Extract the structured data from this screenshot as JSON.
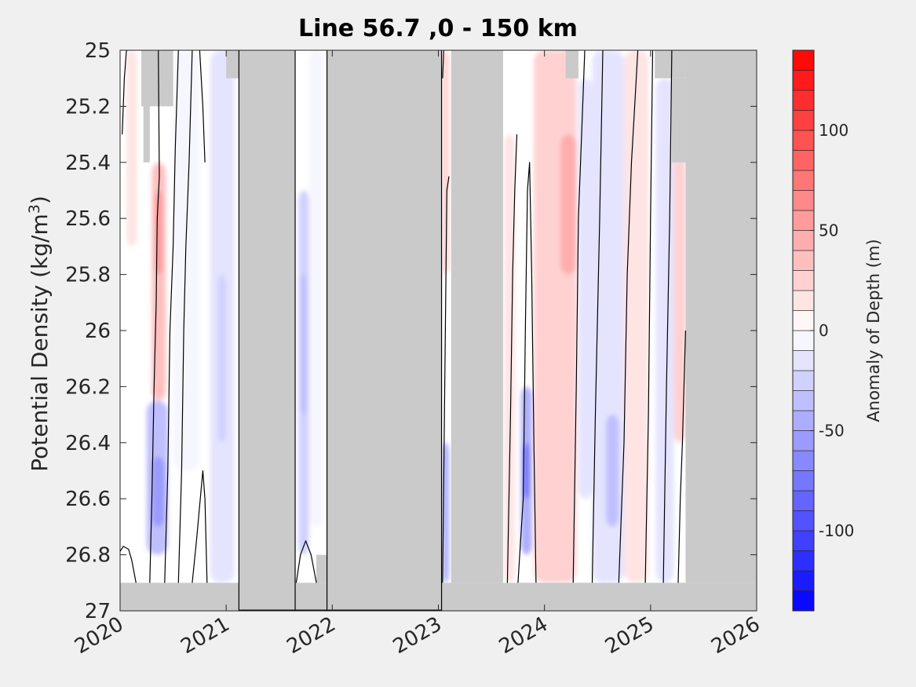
{
  "chart_data": {
    "type": "heatmap",
    "title": "Line 56.7 ,0 - 150 km",
    "ylabel_prefix": "Potential Density (kg/m",
    "ylabel_sup": "3",
    "ylabel_suffix": ")",
    "colorbar_label": "Anomaly of Depth (m)",
    "xlim": [
      2020,
      2026
    ],
    "ylim": [
      25,
      27
    ],
    "y_reversed": true,
    "x_ticks": [
      "2020",
      "2021",
      "2022",
      "2023",
      "2024",
      "2025",
      "2026"
    ],
    "y_ticks": [
      "25",
      "25.2",
      "25.4",
      "25.6",
      "25.8",
      "26",
      "26.2",
      "26.4",
      "26.6",
      "26.8",
      "27"
    ],
    "colorbar_range": [
      -140,
      140
    ],
    "colorbar_step": 10,
    "colorbar_ticks": [
      "-100",
      "-50",
      "0",
      "50",
      "100"
    ],
    "colors": {
      "background": "#f0f0f0",
      "no_data": "#cacaca",
      "positive": "#ff0000",
      "negative": "#0000ff",
      "contour": "#000000"
    },
    "no_data_regions": [
      {
        "x": [
          2019.97,
          2021.12
        ],
        "y": [
          26.9,
          27.0
        ]
      },
      {
        "x": [
          2021.12,
          2021.65
        ],
        "y": [
          25.0,
          27.0
        ]
      },
      {
        "x": [
          2021.65,
          2021.95
        ],
        "y": [
          26.9,
          27.0
        ]
      },
      {
        "x": [
          2021.85,
          2021.95
        ],
        "y": [
          26.8,
          26.9
        ]
      },
      {
        "x": [
          2021.95,
          2023.03
        ],
        "y": [
          25.0,
          27.0
        ]
      },
      {
        "x": [
          2023.03,
          2023.61
        ],
        "y": [
          26.9,
          27.0
        ]
      },
      {
        "x": [
          2023.12,
          2023.61
        ],
        "y": [
          25.0,
          26.9
        ]
      },
      {
        "x": [
          2023.61,
          2026.0
        ],
        "y": [
          26.9,
          27.0
        ]
      },
      {
        "x": [
          2025.33,
          2026.0
        ],
        "y": [
          25.0,
          26.9
        ]
      },
      {
        "x": [
          2020.2,
          2020.5
        ],
        "y": [
          25.0,
          25.2
        ]
      },
      {
        "x": [
          2020.22,
          2020.28
        ],
        "y": [
          25.2,
          25.4
        ]
      },
      {
        "x": [
          2021.0,
          2021.12
        ],
        "y": [
          25.0,
          25.1
        ]
      },
      {
        "x": [
          2024.2,
          2024.32
        ],
        "y": [
          25.0,
          25.1
        ]
      },
      {
        "x": [
          2025.04,
          2025.33
        ],
        "y": [
          25.0,
          25.1
        ]
      },
      {
        "x": [
          2025.2,
          2025.33
        ],
        "y": [
          25.1,
          25.4
        ]
      }
    ],
    "anomaly_features": [
      {
        "x": [
          2020.06,
          2020.16
        ],
        "y": [
          25.0,
          25.7
        ],
        "value": 10
      },
      {
        "x": [
          2020.3,
          2020.43
        ],
        "y": [
          25.4,
          26.25
        ],
        "value": 35
      },
      {
        "x": [
          2020.33,
          2020.4
        ],
        "y": [
          25.5,
          25.8
        ],
        "value": 50
      },
      {
        "x": [
          2020.25,
          2020.45
        ],
        "y": [
          26.25,
          26.8
        ],
        "value": -35
      },
      {
        "x": [
          2020.3,
          2020.42
        ],
        "y": [
          26.45,
          26.7
        ],
        "value": -60
      },
      {
        "x": [
          2020.5,
          2020.75
        ],
        "y": [
          25.0,
          26.5
        ],
        "value": -10
      },
      {
        "x": [
          2020.85,
          2021.08
        ],
        "y": [
          25.0,
          26.9
        ],
        "value": -15
      },
      {
        "x": [
          2020.92,
          2021.0
        ],
        "y": [
          25.8,
          26.4
        ],
        "value": -25
      },
      {
        "x": [
          2021.68,
          2021.78
        ],
        "y": [
          25.5,
          26.8
        ],
        "value": -25
      },
      {
        "x": [
          2021.7,
          2021.76
        ],
        "y": [
          25.8,
          26.3
        ],
        "value": -35
      },
      {
        "x": [
          2021.78,
          2021.92
        ],
        "y": [
          25.0,
          26.7
        ],
        "value": -10
      },
      {
        "x": [
          2023.04,
          2023.1
        ],
        "y": [
          25.0,
          25.8
        ],
        "value": 20
      },
      {
        "x": [
          2023.04,
          2023.1
        ],
        "y": [
          26.4,
          26.9
        ],
        "value": -45
      },
      {
        "x": [
          2023.62,
          2023.72
        ],
        "y": [
          25.3,
          26.9
        ],
        "value": 15
      },
      {
        "x": [
          2023.78,
          2023.88
        ],
        "y": [
          26.2,
          26.8
        ],
        "value": -50
      },
      {
        "x": [
          2023.8,
          2023.86
        ],
        "y": [
          26.4,
          26.6
        ],
        "value": -80
      },
      {
        "x": [
          2023.9,
          2024.3
        ],
        "y": [
          25.0,
          26.9
        ],
        "value": 25
      },
      {
        "x": [
          2024.15,
          2024.3
        ],
        "y": [
          25.3,
          25.8
        ],
        "value": 45
      },
      {
        "x": [
          2024.32,
          2024.45
        ],
        "y": [
          25.1,
          26.6
        ],
        "value": -15
      },
      {
        "x": [
          2024.45,
          2024.75
        ],
        "y": [
          25.0,
          26.9
        ],
        "value": -20
      },
      {
        "x": [
          2024.58,
          2024.7
        ],
        "y": [
          26.3,
          26.7
        ],
        "value": -35
      },
      {
        "x": [
          2024.75,
          2024.98
        ],
        "y": [
          25.0,
          26.9
        ],
        "value": 10
      },
      {
        "x": [
          2025.05,
          2025.22
        ],
        "y": [
          25.1,
          26.9
        ],
        "value": -15
      },
      {
        "x": [
          2025.22,
          2025.33
        ],
        "y": [
          25.3,
          26.4
        ],
        "value": 25
      }
    ],
    "contour_lines": [
      {
        "x": [
          2020.02,
          2020.04,
          2020.06,
          2020.08
        ],
        "y": [
          25.3,
          25.1,
          25.0,
          25.0
        ]
      },
      {
        "x": [
          2019.98,
          2020.03,
          2020.08,
          2020.11,
          2020.13,
          2020.15
        ],
        "y": [
          26.8,
          26.77,
          26.78,
          26.82,
          26.86,
          26.9
        ]
      },
      {
        "x": [
          2020.28,
          2020.3,
          2020.32,
          2020.34,
          2020.35,
          2020.37,
          2020.36
        ],
        "y": [
          26.9,
          26.6,
          26.2,
          25.9,
          25.6,
          25.45,
          25.0
        ]
      },
      {
        "x": [
          2020.42,
          2020.45,
          2020.47,
          2020.5,
          2020.52,
          2020.55
        ],
        "y": [
          26.9,
          26.5,
          26.0,
          25.7,
          25.35,
          25.0
        ]
      },
      {
        "x": [
          2020.55,
          2020.58,
          2020.6,
          2020.62,
          2020.65,
          2020.68
        ],
        "y": [
          26.9,
          26.5,
          26.0,
          25.7,
          25.4,
          25.0
        ]
      },
      {
        "x": [
          2020.68,
          2020.72,
          2020.78,
          2020.8,
          2020.82
        ],
        "y": [
          26.9,
          26.75,
          26.5,
          26.6,
          26.9
        ]
      },
      {
        "x": [
          2020.75,
          2020.78,
          2020.8
        ],
        "y": [
          25.0,
          25.2,
          25.4
        ]
      },
      {
        "x": [
          2021.66,
          2021.7,
          2021.75,
          2021.8,
          2021.85
        ],
        "y": [
          26.9,
          26.8,
          26.75,
          26.8,
          26.9
        ]
      },
      {
        "x": [
          2023.04,
          2023.06,
          2023.08,
          2023.1
        ],
        "y": [
          26.9,
          26.2,
          25.5,
          25.45
        ]
      },
      {
        "x": [
          2023.04,
          2023.05
        ],
        "y": [
          25.1,
          25.0
        ]
      },
      {
        "x": [
          2023.65,
          2023.68,
          2023.7,
          2023.72,
          2023.74
        ],
        "y": [
          26.9,
          26.3,
          25.8,
          25.5,
          25.3
        ]
      },
      {
        "x": [
          2023.75,
          2023.8,
          2023.82,
          2023.84,
          2023.86,
          2023.88
        ],
        "y": [
          26.9,
          26.6,
          26.0,
          25.5,
          25.4,
          25.8
        ]
      },
      {
        "x": [
          2023.88,
          2023.9,
          2023.92
        ],
        "y": [
          25.8,
          26.4,
          26.9
        ]
      },
      {
        "x": [
          2024.27,
          2024.3,
          2024.32,
          2024.35,
          2024.38
        ],
        "y": [
          26.9,
          26.2,
          25.6,
          25.3,
          25.0
        ]
      },
      {
        "x": [
          2024.45,
          2024.48,
          2024.52,
          2024.55
        ],
        "y": [
          26.9,
          26.3,
          25.6,
          25.0
        ]
      },
      {
        "x": [
          2024.7,
          2024.75,
          2024.78,
          2024.82,
          2024.85,
          2024.88
        ],
        "y": [
          26.9,
          26.4,
          25.8,
          25.4,
          25.2,
          25.0
        ]
      },
      {
        "x": [
          2024.95,
          2024.98,
          2025.0,
          2025.02
        ],
        "y": [
          26.9,
          26.3,
          25.6,
          25.0
        ]
      },
      {
        "x": [
          2025.12,
          2025.15,
          2025.18,
          2025.2
        ],
        "y": [
          26.9,
          26.2,
          25.6,
          25.0
        ]
      },
      {
        "x": [
          2025.26,
          2025.28,
          2025.3,
          2025.33
        ],
        "y": [
          26.9,
          26.6,
          26.4,
          26.0
        ]
      }
    ]
  }
}
